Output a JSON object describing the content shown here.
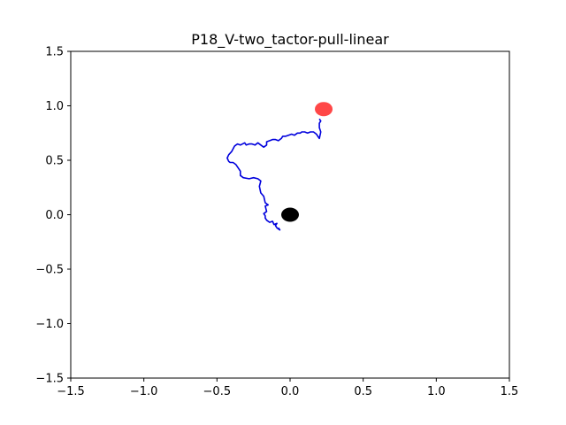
{
  "chart_data": {
    "type": "scatter",
    "title": "P18_V-two_tactor-pull-linear",
    "xlabel": "",
    "ylabel": "",
    "xlim": [
      -1.5,
      1.5
    ],
    "ylim": [
      -1.5,
      1.5
    ],
    "x_ticks": [
      "−1.5",
      "−1.0",
      "−0.5",
      "0.0",
      "0.5",
      "1.0",
      "1.5"
    ],
    "x_tick_values": [
      -1.5,
      -1.0,
      -0.5,
      0.0,
      0.5,
      1.0,
      1.5
    ],
    "y_ticks": [
      "−1.5",
      "−1.0",
      "−0.5",
      "0.0",
      "0.5",
      "1.0",
      "1.5"
    ],
    "y_tick_values": [
      -1.5,
      -1.0,
      -0.5,
      0.0,
      0.5,
      1.0,
      1.5
    ],
    "grid": false,
    "trajectory": {
      "color": "#0000dd",
      "x": [
        -0.08,
        -0.07,
        -0.09,
        -0.1,
        -0.09,
        -0.11,
        -0.12,
        -0.14,
        -0.16,
        -0.17,
        -0.17,
        -0.18,
        -0.16,
        -0.17,
        -0.15,
        -0.17,
        -0.18,
        -0.2,
        -0.21,
        -0.2,
        -0.22,
        -0.25,
        -0.28,
        -0.32,
        -0.34,
        -0.34,
        -0.36,
        -0.37,
        -0.39,
        -0.41,
        -0.42,
        -0.43,
        -0.42,
        -0.4,
        -0.38,
        -0.37,
        -0.36,
        -0.34,
        -0.31,
        -0.3,
        -0.28,
        -0.26,
        -0.24,
        -0.22,
        -0.2,
        -0.18,
        -0.16,
        -0.16,
        -0.14,
        -0.12,
        -0.1,
        -0.08,
        -0.06,
        -0.05,
        -0.03,
        -0.01,
        0.01,
        0.03,
        0.05,
        0.07,
        0.08,
        0.1,
        0.12,
        0.14,
        0.16,
        0.18,
        0.19,
        0.2,
        0.21,
        0.2,
        0.2,
        0.21,
        0.2
      ],
      "y": [
        -0.12,
        -0.14,
        -0.12,
        -0.1,
        -0.08,
        -0.09,
        -0.06,
        -0.07,
        -0.05,
        -0.03,
        -0.01,
        0.01,
        0.03,
        0.08,
        0.09,
        0.11,
        0.17,
        0.2,
        0.26,
        0.31,
        0.33,
        0.34,
        0.33,
        0.34,
        0.36,
        0.4,
        0.44,
        0.46,
        0.48,
        0.48,
        0.49,
        0.52,
        0.55,
        0.58,
        0.63,
        0.64,
        0.65,
        0.64,
        0.66,
        0.64,
        0.65,
        0.65,
        0.64,
        0.66,
        0.64,
        0.62,
        0.64,
        0.67,
        0.68,
        0.69,
        0.69,
        0.68,
        0.7,
        0.72,
        0.72,
        0.73,
        0.74,
        0.73,
        0.75,
        0.75,
        0.76,
        0.76,
        0.75,
        0.76,
        0.76,
        0.74,
        0.72,
        0.7,
        0.76,
        0.8,
        0.84,
        0.86,
        0.88
      ]
    },
    "markers": [
      {
        "x": 0.0,
        "y": 0.0,
        "color": "#000000",
        "opacity": 1.0
      },
      {
        "x": 0.23,
        "y": 0.97,
        "color": "#ff0000",
        "opacity": 0.72
      }
    ]
  }
}
